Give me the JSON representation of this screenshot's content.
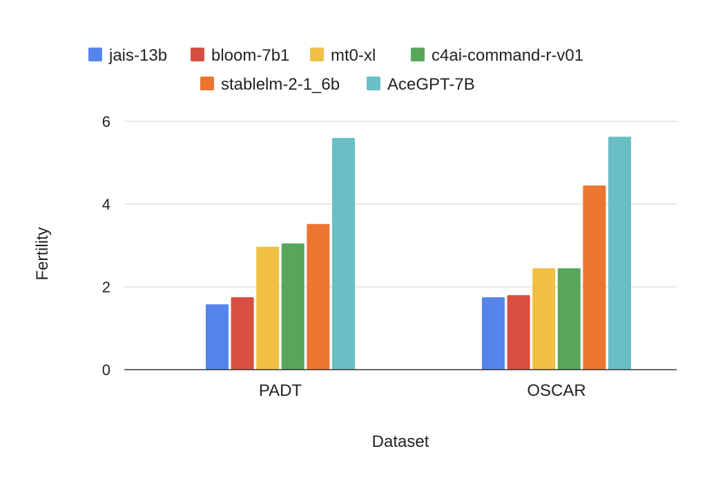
{
  "chart_data": {
    "type": "bar",
    "title": "",
    "xlabel": "Dataset",
    "ylabel": "Fertility",
    "ylim": [
      0,
      6
    ],
    "yticks": [
      "0",
      "2",
      "4",
      "6"
    ],
    "grid": true,
    "legend_position": "top",
    "categories": [
      "PADT",
      "OSCAR"
    ],
    "series": [
      {
        "name": "jais-13b",
        "color": "#5585EC",
        "values": [
          1.58,
          1.75
        ]
      },
      {
        "name": "bloom-7b1",
        "color": "#D84E40",
        "values": [
          1.75,
          1.8
        ]
      },
      {
        "name": "mt0-xl",
        "color": "#F0C045",
        "values": [
          2.97,
          2.45
        ]
      },
      {
        "name": "c4ai-command-r-v01",
        "color": "#58A65C",
        "values": [
          3.05,
          2.45
        ]
      },
      {
        "name": "stablelm-2-1_6b",
        "color": "#EC7532",
        "values": [
          3.52,
          4.45
        ]
      },
      {
        "name": "AceGPT-7B",
        "color": "#6ABFC4",
        "values": [
          5.6,
          5.63
        ]
      }
    ]
  }
}
